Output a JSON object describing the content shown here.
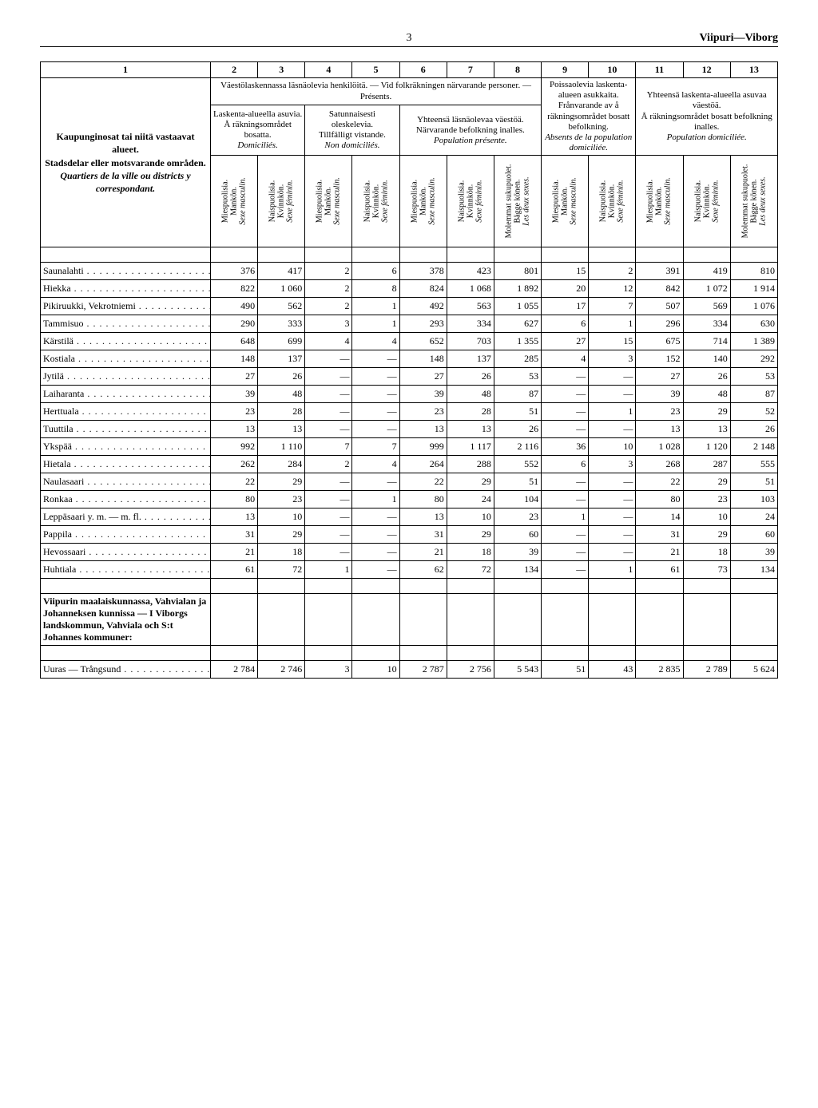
{
  "page_number": "3",
  "page_title": "Viipuri—Viborg",
  "colnums": [
    "1",
    "2",
    "3",
    "4",
    "5",
    "6",
    "7",
    "8",
    "9",
    "10",
    "11",
    "12",
    "13"
  ],
  "header_top_present": "Väestölaskennassa läsnäolevia henkilöitä. — Vid folkräkningen närvarande personer. — Présents.",
  "header_top_absent": "Poissaolevia laskenta-alueen asukkaita.",
  "header_right_total": "Yhteensä laskenta-alueella asuvaa väestöä.",
  "rowhead": {
    "l1": "Kaupunginosat tai niitä vastaavat alueet.",
    "l2": "Stadsdelar eller motsvarande områden.",
    "l3": "Quartiers de la ville ou districts y correspondant."
  },
  "group_domicil": {
    "fi": "Laskenta-alueella asuvia.",
    "sv": "Å räkningsområdet bosatta.",
    "fr": "Domiciliés."
  },
  "group_temp": {
    "fi": "Satunnaisesti oleskelevia.",
    "sv": "Tillfälligt vistande.",
    "fr": "Non domiciliés."
  },
  "group_pop_pres": {
    "fi": "Yhteensä läsnäolevaa väestöä.",
    "sv": "Närvarande befolkning inalles.",
    "fr": "Population présente."
  },
  "group_absent": {
    "fi": "Frånvarande av å räkningsområdet bosatt befolkning.",
    "fr": "Absents de la population domiciliée."
  },
  "group_total": {
    "fi": "Å räkningsområdet bosatt befolkning inalles.",
    "fr": "Population domiciliée."
  },
  "sex_m": {
    "a": "Miespuolisia.",
    "b": "Mankön.",
    "c": "Sexe masculin."
  },
  "sex_f": {
    "a": "Naispuolisia.",
    "b": "Kvinnkön.",
    "c": "Sexe féminin."
  },
  "sex_both": {
    "a": "Molemmat sukupuolet.",
    "b": "Bägge könen.",
    "c": "Les deux sexes."
  },
  "rows": [
    {
      "label": "Saunalahti",
      "c": [
        "376",
        "417",
        "2",
        "6",
        "378",
        "423",
        "801",
        "15",
        "2",
        "391",
        "419",
        "810"
      ]
    },
    {
      "label": "Hiekka",
      "c": [
        "822",
        "1 060",
        "2",
        "8",
        "824",
        "1 068",
        "1 892",
        "20",
        "12",
        "842",
        "1 072",
        "1 914"
      ]
    },
    {
      "label": "Pikiruukki, Vekrotniemi",
      "c": [
        "490",
        "562",
        "2",
        "1",
        "492",
        "563",
        "1 055",
        "17",
        "7",
        "507",
        "569",
        "1 076"
      ]
    },
    {
      "label": "Tammisuo",
      "c": [
        "290",
        "333",
        "3",
        "1",
        "293",
        "334",
        "627",
        "6",
        "1",
        "296",
        "334",
        "630"
      ]
    },
    {
      "label": "Kärstilä",
      "c": [
        "648",
        "699",
        "4",
        "4",
        "652",
        "703",
        "1 355",
        "27",
        "15",
        "675",
        "714",
        "1 389"
      ]
    },
    {
      "label": "Kostiala",
      "c": [
        "148",
        "137",
        "—",
        "—",
        "148",
        "137",
        "285",
        "4",
        "3",
        "152",
        "140",
        "292"
      ]
    },
    {
      "label": "Jytilä",
      "c": [
        "27",
        "26",
        "—",
        "—",
        "27",
        "26",
        "53",
        "—",
        "—",
        "27",
        "26",
        "53"
      ]
    },
    {
      "label": "Laiharanta",
      "c": [
        "39",
        "48",
        "—",
        "—",
        "39",
        "48",
        "87",
        "—",
        "—",
        "39",
        "48",
        "87"
      ]
    },
    {
      "label": "Herttuala",
      "c": [
        "23",
        "28",
        "—",
        "—",
        "23",
        "28",
        "51",
        "—",
        "1",
        "23",
        "29",
        "52"
      ]
    },
    {
      "label": "Tuuttila",
      "c": [
        "13",
        "13",
        "—",
        "—",
        "13",
        "13",
        "26",
        "—",
        "—",
        "13",
        "13",
        "26"
      ]
    },
    {
      "label": "Ykspää",
      "c": [
        "992",
        "1 110",
        "7",
        "7",
        "999",
        "1 117",
        "2 116",
        "36",
        "10",
        "1 028",
        "1 120",
        "2 148"
      ]
    },
    {
      "label": "Hietala",
      "c": [
        "262",
        "284",
        "2",
        "4",
        "264",
        "288",
        "552",
        "6",
        "3",
        "268",
        "287",
        "555"
      ]
    },
    {
      "label": "Naulasaari",
      "c": [
        "22",
        "29",
        "—",
        "—",
        "22",
        "29",
        "51",
        "—",
        "—",
        "22",
        "29",
        "51"
      ]
    },
    {
      "label": "Ronkaa",
      "c": [
        "80",
        "23",
        "—",
        "1",
        "80",
        "24",
        "104",
        "—",
        "—",
        "80",
        "23",
        "103"
      ]
    },
    {
      "label": "Leppäsaari y. m. — m. fl.",
      "c": [
        "13",
        "10",
        "—",
        "—",
        "13",
        "10",
        "23",
        "1",
        "—",
        "14",
        "10",
        "24"
      ]
    },
    {
      "label": "Pappila",
      "c": [
        "31",
        "29",
        "—",
        "—",
        "31",
        "29",
        "60",
        "—",
        "—",
        "31",
        "29",
        "60"
      ]
    },
    {
      "label": "Hevossaari",
      "c": [
        "21",
        "18",
        "—",
        "—",
        "21",
        "18",
        "39",
        "—",
        "—",
        "21",
        "18",
        "39"
      ]
    },
    {
      "label": "Huhtiala",
      "c": [
        "61",
        "72",
        "1",
        "—",
        "62",
        "72",
        "134",
        "—",
        "1",
        "61",
        "73",
        "134"
      ]
    }
  ],
  "section_title": "Viipurin maalaiskunnassa, Vahvialan ja Johanneksen kunnissa — I Viborgs landskommun, Vahviala och S:t Johannes kommuner:",
  "bottom_row": {
    "label": "Uuras — Trångsund",
    "c": [
      "2 784",
      "2 746",
      "3",
      "10",
      "2 787",
      "2 756",
      "5 543",
      "51",
      "43",
      "2 835",
      "2 789",
      "5 624"
    ]
  }
}
